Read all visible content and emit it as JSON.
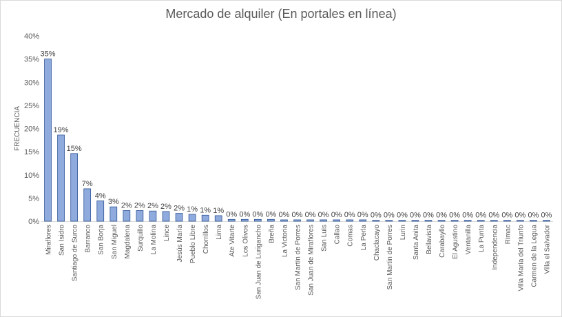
{
  "chart_data": {
    "type": "bar",
    "title": "Mercado de alquiler (En portales en línea)",
    "xlabel": "",
    "ylabel": "FRECUENCIA",
    "ylim": [
      0,
      40
    ],
    "yticks": [
      "0%",
      "5%",
      "10%",
      "15%",
      "20%",
      "25%",
      "30%",
      "35%",
      "40%"
    ],
    "grid": false,
    "legend": "none",
    "bar_color": "#8faadc",
    "bar_edge": "#2f5597",
    "categories": [
      "Miraflores",
      "San Isidro",
      "Santiago de Surco",
      "Barranco",
      "San Borja",
      "San Miguel",
      "Magdalena",
      "Surquillo",
      "La Molina",
      "Lince",
      "Jesús María",
      "Pueblo Libre",
      "Chorrillos",
      "Lima",
      "Ate Vitarte",
      "Los Olivos",
      "San Juan de Lurigancho",
      "Breña",
      "La Victoria",
      "San Martín de Porres",
      "San Juan de Miraflores",
      "San Luis",
      "Callao",
      "Comas",
      "La Perla",
      "Chaclacayo",
      "San Martin de Porres",
      "Lurin",
      "Santa Anita",
      "Bellavista",
      "Carabayllo",
      "El Agustino",
      "Ventanilla",
      "La Punta",
      "Independencia",
      "Rimac",
      "Villa María del Triunfo",
      "Carmen de la Legua",
      "Villa el Salvador"
    ],
    "values": [
      35.0,
      18.6,
      14.6,
      7.0,
      4.4,
      3.1,
      2.3,
      2.3,
      2.2,
      2.1,
      1.7,
      1.5,
      1.3,
      1.2,
      0.4,
      0.4,
      0.4,
      0.4,
      0.3,
      0.3,
      0.3,
      0.3,
      0.3,
      0.3,
      0.3,
      0.2,
      0.2,
      0.2,
      0.2,
      0.2,
      0.2,
      0.2,
      0.2,
      0.2,
      0.2,
      0.2,
      0.2,
      0.2,
      0.2
    ],
    "data_labels": [
      "35%",
      "19%",
      "15%",
      "7%",
      "4%",
      "3%",
      "2%",
      "2%",
      "2%",
      "2%",
      "2%",
      "1%",
      "1%",
      "1%",
      "0%",
      "0%",
      "0%",
      "0%",
      "0%",
      "0%",
      "0%",
      "0%",
      "0%",
      "0%",
      "0%",
      "0%",
      "0%",
      "0%",
      "0%",
      "0%",
      "0%",
      "0%",
      "0%",
      "0%",
      "0%",
      "0%",
      "0%",
      "0%",
      "0%"
    ]
  }
}
